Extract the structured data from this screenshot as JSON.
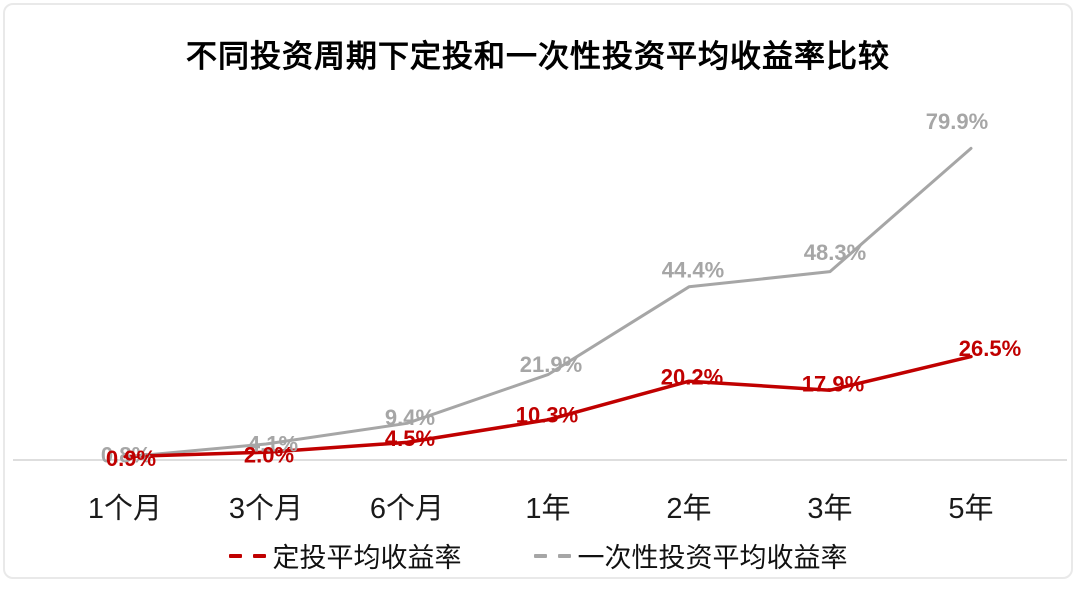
{
  "title": "不同投资周期下定投和一次性投资平均收益率比较",
  "colors": {
    "dca_red": "#c00000",
    "lump_sum_gray": "#a6a6a6",
    "axis_line": "#dedede",
    "axis_text": "#1a1a1a",
    "card_border": "#e9e9e9",
    "background": "#ffffff"
  },
  "legend": {
    "items": [
      {
        "name": "dca",
        "label": "定投平均收益率",
        "color": "#c00000"
      },
      {
        "name": "lump-sum",
        "label": "一次性投资平均收益率",
        "color": "#a6a6a6"
      }
    ]
  },
  "chart_data": {
    "type": "line",
    "title": "不同投资周期下定投和一次性投资平均收益率比较",
    "categories": [
      "1个月",
      "3个月",
      "6个月",
      "1年",
      "2年",
      "3年",
      "5年"
    ],
    "series": [
      {
        "name": "定投平均收益率",
        "color": "#c00000",
        "values": [
          0.9,
          2.0,
          4.5,
          10.3,
          20.2,
          17.9,
          26.5
        ],
        "labels": [
          "0.9%",
          "2.0%",
          "4.5%",
          "10.3%",
          "20.2%",
          "17.9%",
          "26.5%"
        ]
      },
      {
        "name": "一次性投资平均收益率",
        "color": "#a6a6a6",
        "values": [
          0.8,
          4.1,
          9.4,
          21.9,
          44.4,
          48.3,
          79.9
        ],
        "labels": [
          "0.8%",
          "4.1%",
          "9.4%",
          "21.9%",
          "44.4%",
          "48.3%",
          "79.9%"
        ]
      }
    ],
    "xlabel": "",
    "ylabel": "",
    "ylim": [
      0,
      85
    ],
    "grid": false,
    "y_axis_visible": false,
    "data_labels": true,
    "legend_position": "bottom"
  }
}
